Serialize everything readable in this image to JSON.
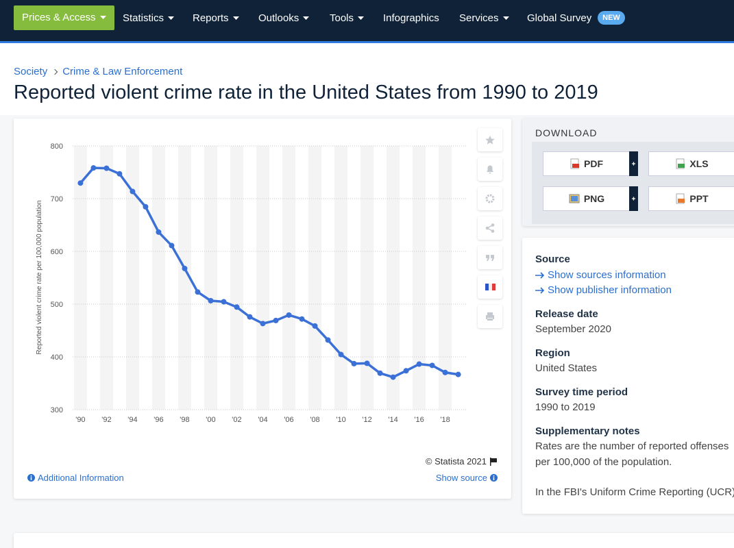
{
  "nav": {
    "items": [
      "Prices & Access",
      "Statistics",
      "Reports",
      "Outlooks",
      "Tools",
      "Infographics",
      "Services",
      "Global Survey"
    ],
    "badge": "NEW"
  },
  "breadcrumb": [
    "Society",
    "Crime & Law Enforcement"
  ],
  "title": "Reported violent crime rate in the United States from 1990 to 2019",
  "chart_data": {
    "type": "line",
    "y_label": "Reported violent crime rate per 100,000 population",
    "x": [
      1990,
      1991,
      1992,
      1993,
      1994,
      1995,
      1996,
      1997,
      1998,
      1999,
      2000,
      2001,
      2002,
      2003,
      2004,
      2005,
      2006,
      2007,
      2008,
      2009,
      2010,
      2011,
      2012,
      2013,
      2014,
      2015,
      2016,
      2017,
      2018,
      2019
    ],
    "values": [
      729.6,
      758.2,
      757.7,
      747.1,
      713.6,
      684.5,
      636.6,
      611.0,
      567.6,
      523.0,
      506.5,
      504.5,
      494.4,
      475.8,
      463.2,
      469.0,
      479.3,
      471.8,
      458.6,
      431.9,
      404.5,
      387.1,
      387.8,
      369.1,
      361.6,
      373.7,
      386.3,
      383.8,
      370.4,
      366.7
    ],
    "color": "#3b70d6",
    "xlim": [
      1989.4,
      2019.6
    ],
    "xticks": [
      {
        "value": 1990,
        "label": "'90"
      },
      {
        "value": 1992,
        "label": "'92"
      },
      {
        "value": 1994,
        "label": "'94"
      },
      {
        "value": 1996,
        "label": "'96"
      },
      {
        "value": 1998,
        "label": "'98"
      },
      {
        "value": 2000,
        "label": "'00"
      },
      {
        "value": 2002,
        "label": "'02"
      },
      {
        "value": 2004,
        "label": "'04"
      },
      {
        "value": 2006,
        "label": "'06"
      },
      {
        "value": 2008,
        "label": "'08"
      },
      {
        "value": 2010,
        "label": "'10"
      },
      {
        "value": 2012,
        "label": "'12"
      },
      {
        "value": 2014,
        "label": "'14"
      },
      {
        "value": 2016,
        "label": "'16"
      },
      {
        "value": 2018,
        "label": "'18"
      }
    ],
    "ylim": [
      300,
      800
    ],
    "yticks": [
      300,
      400,
      500,
      600,
      700,
      800
    ],
    "grid": true
  },
  "chart_footer": {
    "copyright": "© Statista 2021",
    "additional_info": "Additional Information",
    "show_source": "Show source"
  },
  "download": {
    "heading": "DOWNLOAD",
    "buttons": [
      "PDF",
      "XLS",
      "PNG",
      "PPT"
    ]
  },
  "details": [
    {
      "label": "Source",
      "links": [
        "Show sources information",
        "Show publisher information"
      ]
    },
    {
      "label": "Release date",
      "value": "September 2020"
    },
    {
      "label": "Region",
      "value": "United States"
    },
    {
      "label": "Survey time period",
      "value": "1990 to 2019"
    },
    {
      "label": "Supplementary notes",
      "paragraphs": [
        "Rates are the number of reported offenses per 100,000 of the population.",
        "In the FBI's Uniform Crime Reporting (UCR)"
      ]
    }
  ]
}
